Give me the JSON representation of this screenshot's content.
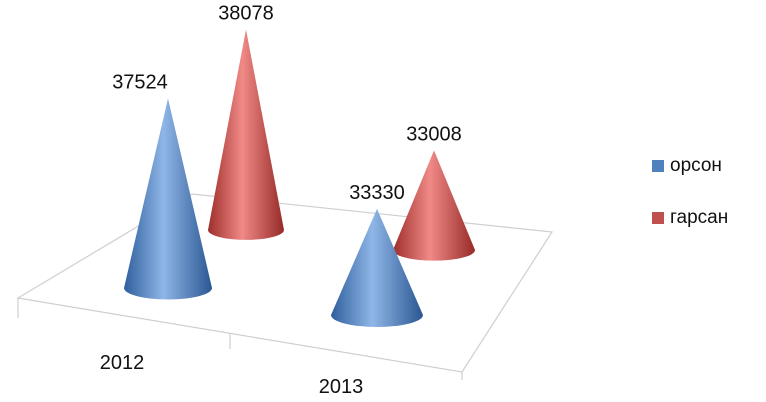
{
  "chart_data": {
    "type": "bar",
    "variant": "3d-cone",
    "categories": [
      "2012",
      "2013"
    ],
    "series": [
      {
        "name": "орсон",
        "values": [
          37524,
          33330
        ],
        "color": "#4f81bd"
      },
      {
        "name": "гарсан",
        "values": [
          38078,
          33008
        ],
        "color": "#c0504d"
      }
    ],
    "legend_position": "right",
    "grid": false
  }
}
